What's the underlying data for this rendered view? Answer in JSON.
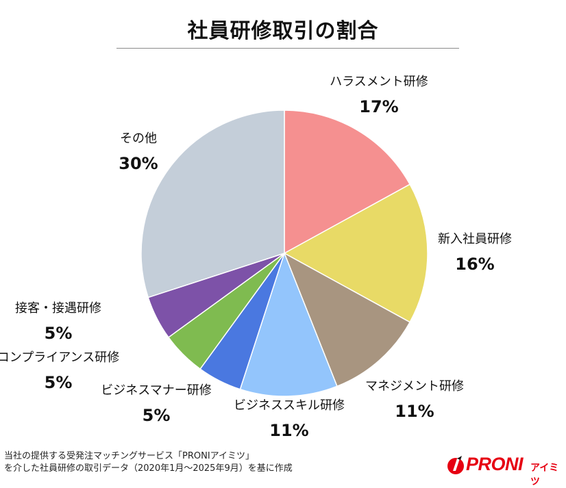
{
  "chart_data": {
    "type": "pie",
    "title": "社員研修取引の割合",
    "categories": [
      "ハラスメント研修",
      "新入社員研修",
      "マネジメント研修",
      "ビジネススキル研修",
      "ビジネスマナー研修",
      "コンプライアンス研修",
      "接客・接遇研修",
      "その他"
    ],
    "values": [
      17,
      16,
      11,
      11,
      5,
      5,
      5,
      30
    ],
    "value_labels": [
      "17%",
      "16%",
      "11%",
      "11%",
      "5%",
      "5%",
      "5%",
      "30%"
    ],
    "colors": [
      "#f59090",
      "#e8da66",
      "#a89580",
      "#93c5fc",
      "#4a78e0",
      "#7fbb50",
      "#7d52a8",
      "#c4ced9"
    ],
    "start_angle": "12 o'clock",
    "direction": "clockwise",
    "legend": "none"
  },
  "footer": {
    "line1": "当社の提供する受発注マッチングサービス「PRONIアイミツ」",
    "line2": "を介した社員研修の取引データ（2020年1月〜2025年9月）を基に作成"
  },
  "logo": {
    "brand": "PRONI",
    "brand_sub": "アイミツ",
    "accent_color": "#e60012"
  }
}
